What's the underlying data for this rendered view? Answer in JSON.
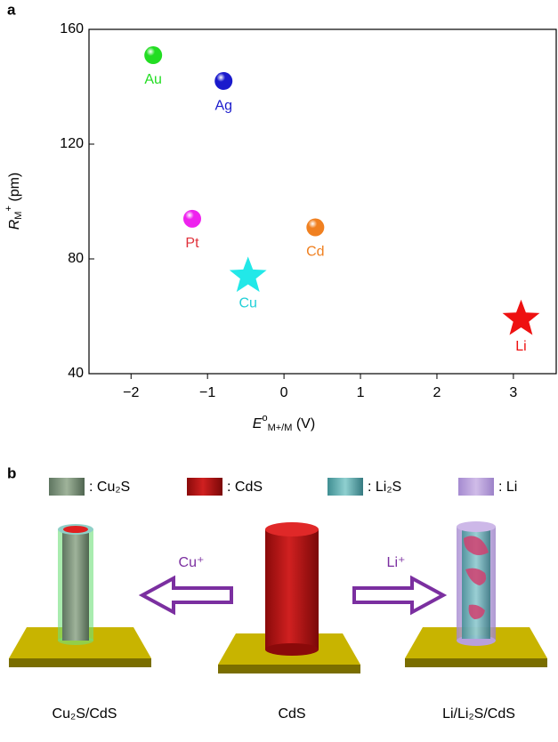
{
  "panel_a_label": "a",
  "chart_data": {
    "type": "scatter",
    "xlabel": {
      "main": "E",
      "sup": "o",
      "sub": "M+/M",
      "unit": " (V)"
    },
    "ylabel": {
      "main": "R",
      "sub": "M",
      "sup": "+",
      "unit": " (pm)"
    },
    "xlim": [
      -2.55,
      3.56
    ],
    "ylim": [
      40,
      160
    ],
    "xticks": [
      {
        "value": -2,
        "label": "−2"
      },
      {
        "value": -1,
        "label": "−1"
      },
      0,
      1,
      2,
      3
    ],
    "yticks": [
      40,
      80,
      120,
      160
    ],
    "series": [
      {
        "name": "Au",
        "color": "#22dd22",
        "label_color": "#22dd22",
        "marker": "sphere",
        "x": [
          -1.71
        ],
        "values": [
          151
        ]
      },
      {
        "name": "Ag",
        "color": "#1a1acc",
        "label_color": "#1a1acc",
        "marker": "sphere",
        "x": [
          -0.79
        ],
        "values": [
          142
        ]
      },
      {
        "name": "Pt",
        "color": "#ee22ee",
        "label_color": "#e0303a",
        "marker": "sphere",
        "x": [
          -1.2
        ],
        "values": [
          94
        ]
      },
      {
        "name": "Cd",
        "color": "#f08020",
        "label_color": "#f08020",
        "marker": "sphere",
        "x": [
          0.41
        ],
        "values": [
          91
        ]
      },
      {
        "name": "Cu",
        "color": "#22e8e8",
        "label_color": "#22d0d8",
        "marker": "star",
        "x": [
          -0.47
        ],
        "values": [
          74
        ]
      },
      {
        "name": "Li",
        "color": "#ee1111",
        "label_color": "#ee1111",
        "marker": "star",
        "x": [
          3.1
        ],
        "values": [
          59
        ]
      }
    ]
  },
  "panel_b": {
    "label": "b",
    "legend": [
      ": Cu₂S",
      ": CdS",
      ": Li₂S",
      ": Li"
    ],
    "arrows": [
      "Cu⁺",
      "Li⁺"
    ],
    "captions": [
      "Cu₂S/CdS",
      "CdS",
      "Li/Li₂S/CdS"
    ]
  }
}
